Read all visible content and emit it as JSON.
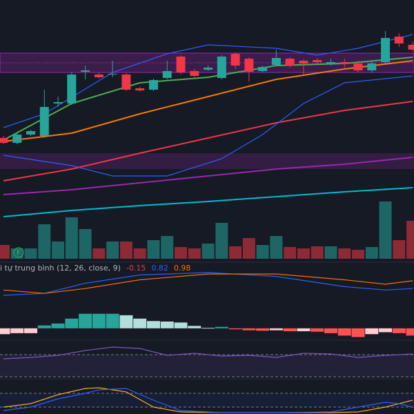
{
  "chart_data": [
    {
      "type": "candlestick",
      "ylim": [
        0,
        375
      ],
      "up_color": "#26a69a",
      "down_color": "#f23645",
      "annotations": [
        "F"
      ],
      "open": [
        175,
        168,
        180,
        178,
        225,
        225,
        271,
        267,
        267,
        267,
        247,
        245,
        262,
        293,
        272,
        274,
        262,
        297,
        290,
        272,
        281,
        290,
        287,
        288,
        282,
        285,
        283,
        273,
        285,
        322,
        310
      ],
      "high": [
        178,
        182,
        187,
        245,
        235,
        270,
        280,
        270,
        287,
        269,
        249,
        261,
        287,
        295,
        275,
        280,
        295,
        299,
        292,
        280,
        303,
        292,
        289,
        291,
        290,
        290,
        287,
        287,
        330,
        327,
        315
      ],
      "low": [
        166,
        166,
        178,
        175,
        220,
        223,
        260,
        261,
        263,
        243,
        242,
        243,
        260,
        267,
        263,
        272,
        260,
        275,
        257,
        270,
        279,
        277,
        267,
        283,
        280,
        275,
        270,
        270,
        283,
        307,
        300
      ],
      "close": [
        168,
        180,
        185,
        220,
        227,
        267,
        273,
        263,
        268,
        245,
        244,
        259,
        272,
        270,
        265,
        277,
        293,
        280,
        271,
        278,
        291,
        280,
        283,
        285,
        285,
        282,
        273,
        283,
        320,
        312,
        303
      ],
      "series": [
        {
          "color": "#4caf50",
          "x": [
            0,
            5,
            10,
            15,
            20,
            25,
            30
          ],
          "values": [
            172,
            225,
            255,
            263,
            280,
            283,
            292
          ]
        },
        {
          "color": "#f57c00",
          "x": [
            0,
            5,
            10,
            15,
            20,
            25,
            30
          ],
          "values": [
            170,
            182,
            210,
            235,
            260,
            275,
            287
          ]
        },
        {
          "color": "#f23645",
          "x": [
            0,
            5,
            10,
            15,
            20,
            25,
            30
          ],
          "values": [
            113,
            130,
            153,
            175,
            197,
            215,
            228
          ]
        },
        {
          "color": "#9c27b0",
          "x": [
            0,
            5,
            10,
            15,
            20,
            25,
            30
          ],
          "values": [
            93,
            100,
            110,
            120,
            130,
            137,
            147
          ]
        },
        {
          "color": "#00bcd4",
          "x": [
            0,
            5,
            10,
            15,
            20,
            25,
            30
          ],
          "values": [
            61,
            70,
            77,
            83,
            90,
            97,
            103
          ]
        },
        {
          "color": "#2962ff",
          "x": [
            0,
            3,
            8,
            12,
            15,
            20,
            23,
            26,
            30
          ],
          "values": [
            190,
            210,
            270,
            297,
            310,
            305,
            295,
            305,
            325
          ]
        },
        {
          "color": "#2962ff",
          "x": [
            0,
            5,
            8,
            12,
            16,
            19,
            22,
            25,
            30
          ],
          "values": [
            150,
            135,
            120,
            120,
            145,
            180,
            225,
            255,
            265
          ]
        }
      ]
    },
    {
      "type": "bar",
      "ylim": [
        0,
        375
      ],
      "values": [
        20,
        15,
        15,
        50,
        25,
        60,
        43,
        15,
        25,
        25,
        15,
        27,
        33,
        17,
        15,
        22,
        52,
        18,
        30,
        20,
        33,
        17,
        15,
        18,
        18,
        15,
        13,
        17,
        83,
        27,
        55
      ]
    },
    {
      "type": "macd",
      "title": "i tự trung bình (12, 26, close, 9)",
      "ylim": [
        -0.23,
        1.15
      ],
      "histogram": {
        "color": "#f23645",
        "values": [
          -0.12,
          -0.1,
          -0.1,
          0.06,
          0.1,
          0.2,
          0.3,
          0.3,
          0.3,
          0.27,
          0.2,
          0.15,
          0.14,
          0.12,
          0.05,
          0.01,
          0.03,
          -0.02,
          -0.04,
          -0.05,
          -0.04,
          -0.06,
          -0.06,
          -0.07,
          -0.1,
          -0.15,
          -0.18,
          -0.12,
          -0.08,
          -0.1,
          -0.15
        ]
      },
      "series": [
        {
          "color": "#2962ff",
          "x": [
            0,
            3,
            6,
            10,
            15,
            20,
            25,
            28,
            30
          ],
          "values": [
            0.68,
            0.72,
            0.93,
            1.1,
            1.15,
            1.07,
            0.86,
            0.79,
            0.82
          ]
        },
        {
          "color": "#ff6d00",
          "x": [
            0,
            3,
            6,
            10,
            15,
            20,
            25,
            28,
            30
          ],
          "values": [
            0.79,
            0.72,
            0.82,
            1.0,
            1.12,
            1.12,
            1.0,
            0.91,
            0.98
          ]
        }
      ]
    },
    {
      "type": "line",
      "ylim": [
        0,
        53
      ],
      "series": [
        {
          "color": "#7e57c2",
          "x": [
            0,
            2,
            4,
            6,
            8,
            10,
            12,
            14,
            16,
            18,
            20,
            22,
            24,
            26,
            28,
            30
          ],
          "values": [
            28,
            30,
            33,
            40,
            45,
            43,
            33,
            36,
            32,
            33,
            30,
            36,
            35,
            30,
            33,
            35
          ]
        }
      ]
    },
    {
      "type": "line",
      "ylim": [
        0,
        50
      ],
      "series": [
        {
          "color": "#f9a825",
          "x": [
            0,
            2,
            4,
            6,
            7,
            9,
            11,
            13,
            16,
            20,
            24,
            26,
            28,
            29,
            30
          ],
          "values": [
            10,
            15,
            28,
            37,
            38,
            32,
            10,
            3,
            2,
            2,
            2,
            3,
            10,
            15,
            20
          ]
        },
        {
          "color": "#2962ff",
          "x": [
            0,
            2,
            4,
            6,
            7,
            9,
            11,
            13,
            16,
            20,
            24,
            26,
            28,
            29,
            30
          ],
          "values": [
            5,
            10,
            22,
            30,
            35,
            37,
            20,
            5,
            2,
            2,
            3,
            10,
            17,
            15,
            10
          ]
        }
      ]
    }
  ]
}
